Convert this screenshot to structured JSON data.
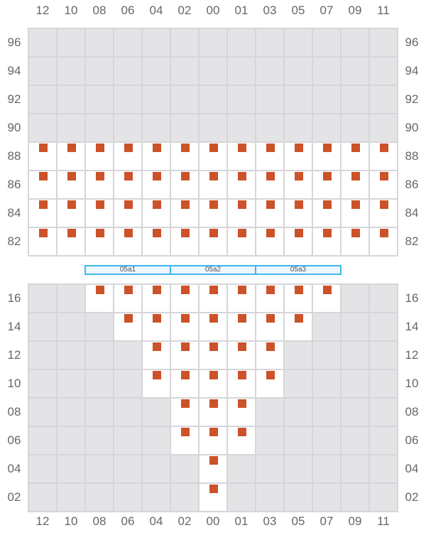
{
  "columns": [
    "12",
    "10",
    "08",
    "06",
    "04",
    "02",
    "00",
    "01",
    "03",
    "05",
    "07",
    "09",
    "11"
  ],
  "top_section": {
    "rows": [
      "96",
      "94",
      "92",
      "90",
      "88",
      "86",
      "84",
      "82"
    ],
    "occupancy": [
      "0000000000000",
      "0000000000000",
      "0000000000000",
      "0000000000000",
      "1111111111111",
      "1111111111111",
      "1111111111111",
      "1111111111111"
    ]
  },
  "banks": [
    "05a1",
    "05a2",
    "05a3"
  ],
  "bottom_section": {
    "rows": [
      "16",
      "14",
      "12",
      "10",
      "08",
      "06",
      "04",
      "02"
    ],
    "occupancy": [
      "0011111111100",
      "0001111111000",
      "0000111110000",
      "0000111110000",
      "0000011100000",
      "0000011100000",
      "0000001000000",
      "0000001000000"
    ]
  },
  "colors": {
    "marker": "#cc5229",
    "empty_cell": "#e4e4e7",
    "active_cell": "#ffffff",
    "bank_border": "#3cb9ec"
  }
}
